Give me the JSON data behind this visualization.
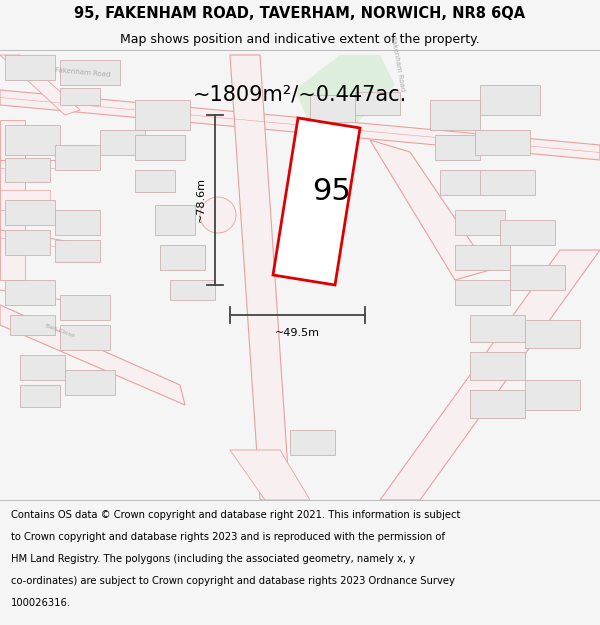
{
  "title_line1": "95, FAKENHAM ROAD, TAVERHAM, NORWICH, NR8 6QA",
  "title_line2": "Map shows position and indicative extent of the property.",
  "area_text": "~1809m²/~0.447ac.",
  "label_95": "95",
  "dim_height": "~78.6m",
  "dim_width": "~49.5m",
  "footer_text": "Contains OS data © Crown copyright and database right 2021. This information is subject to Crown copyright and database rights 2023 and is reproduced with the permission of HM Land Registry. The polygons (including the associated geometry, namely x, y co-ordinates) are subject to Crown copyright and database rights 2023 Ordnance Survey 100026316.",
  "bg_color": "#f5f5f5",
  "map_bg": "#ffffff",
  "road_line_color": "#e8a0a0",
  "road_fill_color": "#f8f0f0",
  "green_area": "#ddeedd",
  "building_fill": "#e8e8e8",
  "building_edge": "#d0b0b0",
  "subject_poly_color": "#dd0000",
  "dim_color": "#444444",
  "title_fontsize": 10.5,
  "subtitle_fontsize": 9,
  "area_fontsize": 15,
  "label_fontsize": 22,
  "footer_fontsize": 7.2,
  "map_road_lw": 0.8,
  "map_building_lw": 0.6
}
